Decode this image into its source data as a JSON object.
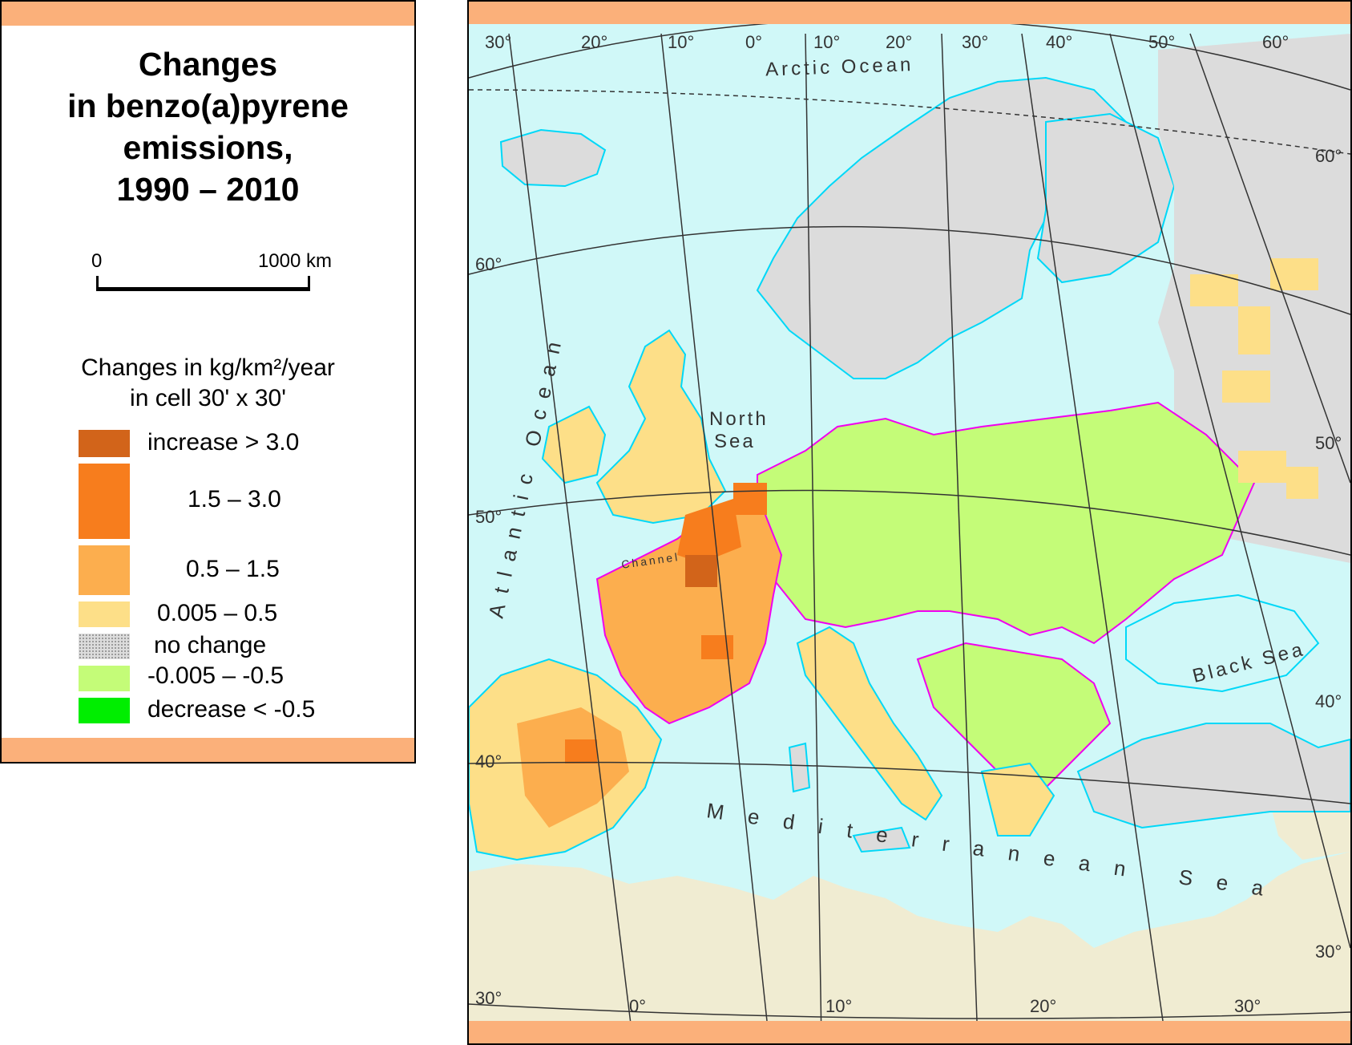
{
  "legend": {
    "title": "Changes\nin benzo(a)pyrene\nemissions,\n1990 – 2010",
    "scale": {
      "zero": "0",
      "max": "1000 km"
    },
    "units": "Changes in kg/km²/year\nin cell 30' x 30'",
    "items": [
      {
        "label": "increase > 3.0",
        "color": "#d2641a"
      },
      {
        "label": "1.5 – 3.0",
        "color": "#f77d1d"
      },
      {
        "label": "0.5 – 1.5",
        "color": "#fcae4e"
      },
      {
        "label": "0.005 – 0.5",
        "color": "#fddf88"
      },
      {
        "label": "no change",
        "color": "#dcdcdc"
      },
      {
        "label": "-0.005 – -0.5",
        "color": "#c4fc78"
      },
      {
        "label": "decrease < -0.5",
        "color": "#00ee00"
      }
    ]
  },
  "map": {
    "colors": {
      "sea": "#d0f8f8",
      "outside_land": "#f0ecd2",
      "coastline": "#00d8f8",
      "borders": "#f000f0",
      "graticule": "#333333",
      "frame_band": "#fbb07a"
    },
    "sea_labels": {
      "arctic": "Arctic Ocean",
      "atlantic": "Atlantic Ocean",
      "north_sea_1": "North",
      "north_sea_2": "Sea",
      "channel": "Channel",
      "black_sea": "Black Sea",
      "mediterranean": "Mediterranean Sea"
    },
    "top_longitude_labels": [
      "30°",
      "20°",
      "10°",
      "0°",
      "10°",
      "20°",
      "30°",
      "40°",
      "50°",
      "60°"
    ],
    "bottom_longitude_labels": [
      "0°",
      "10°",
      "20°",
      "30°"
    ],
    "left_latitude_labels": [
      "60°",
      "50°",
      "40°",
      "30°"
    ],
    "right_latitude_labels": [
      "60°",
      "50°",
      "40°",
      "30°"
    ]
  }
}
